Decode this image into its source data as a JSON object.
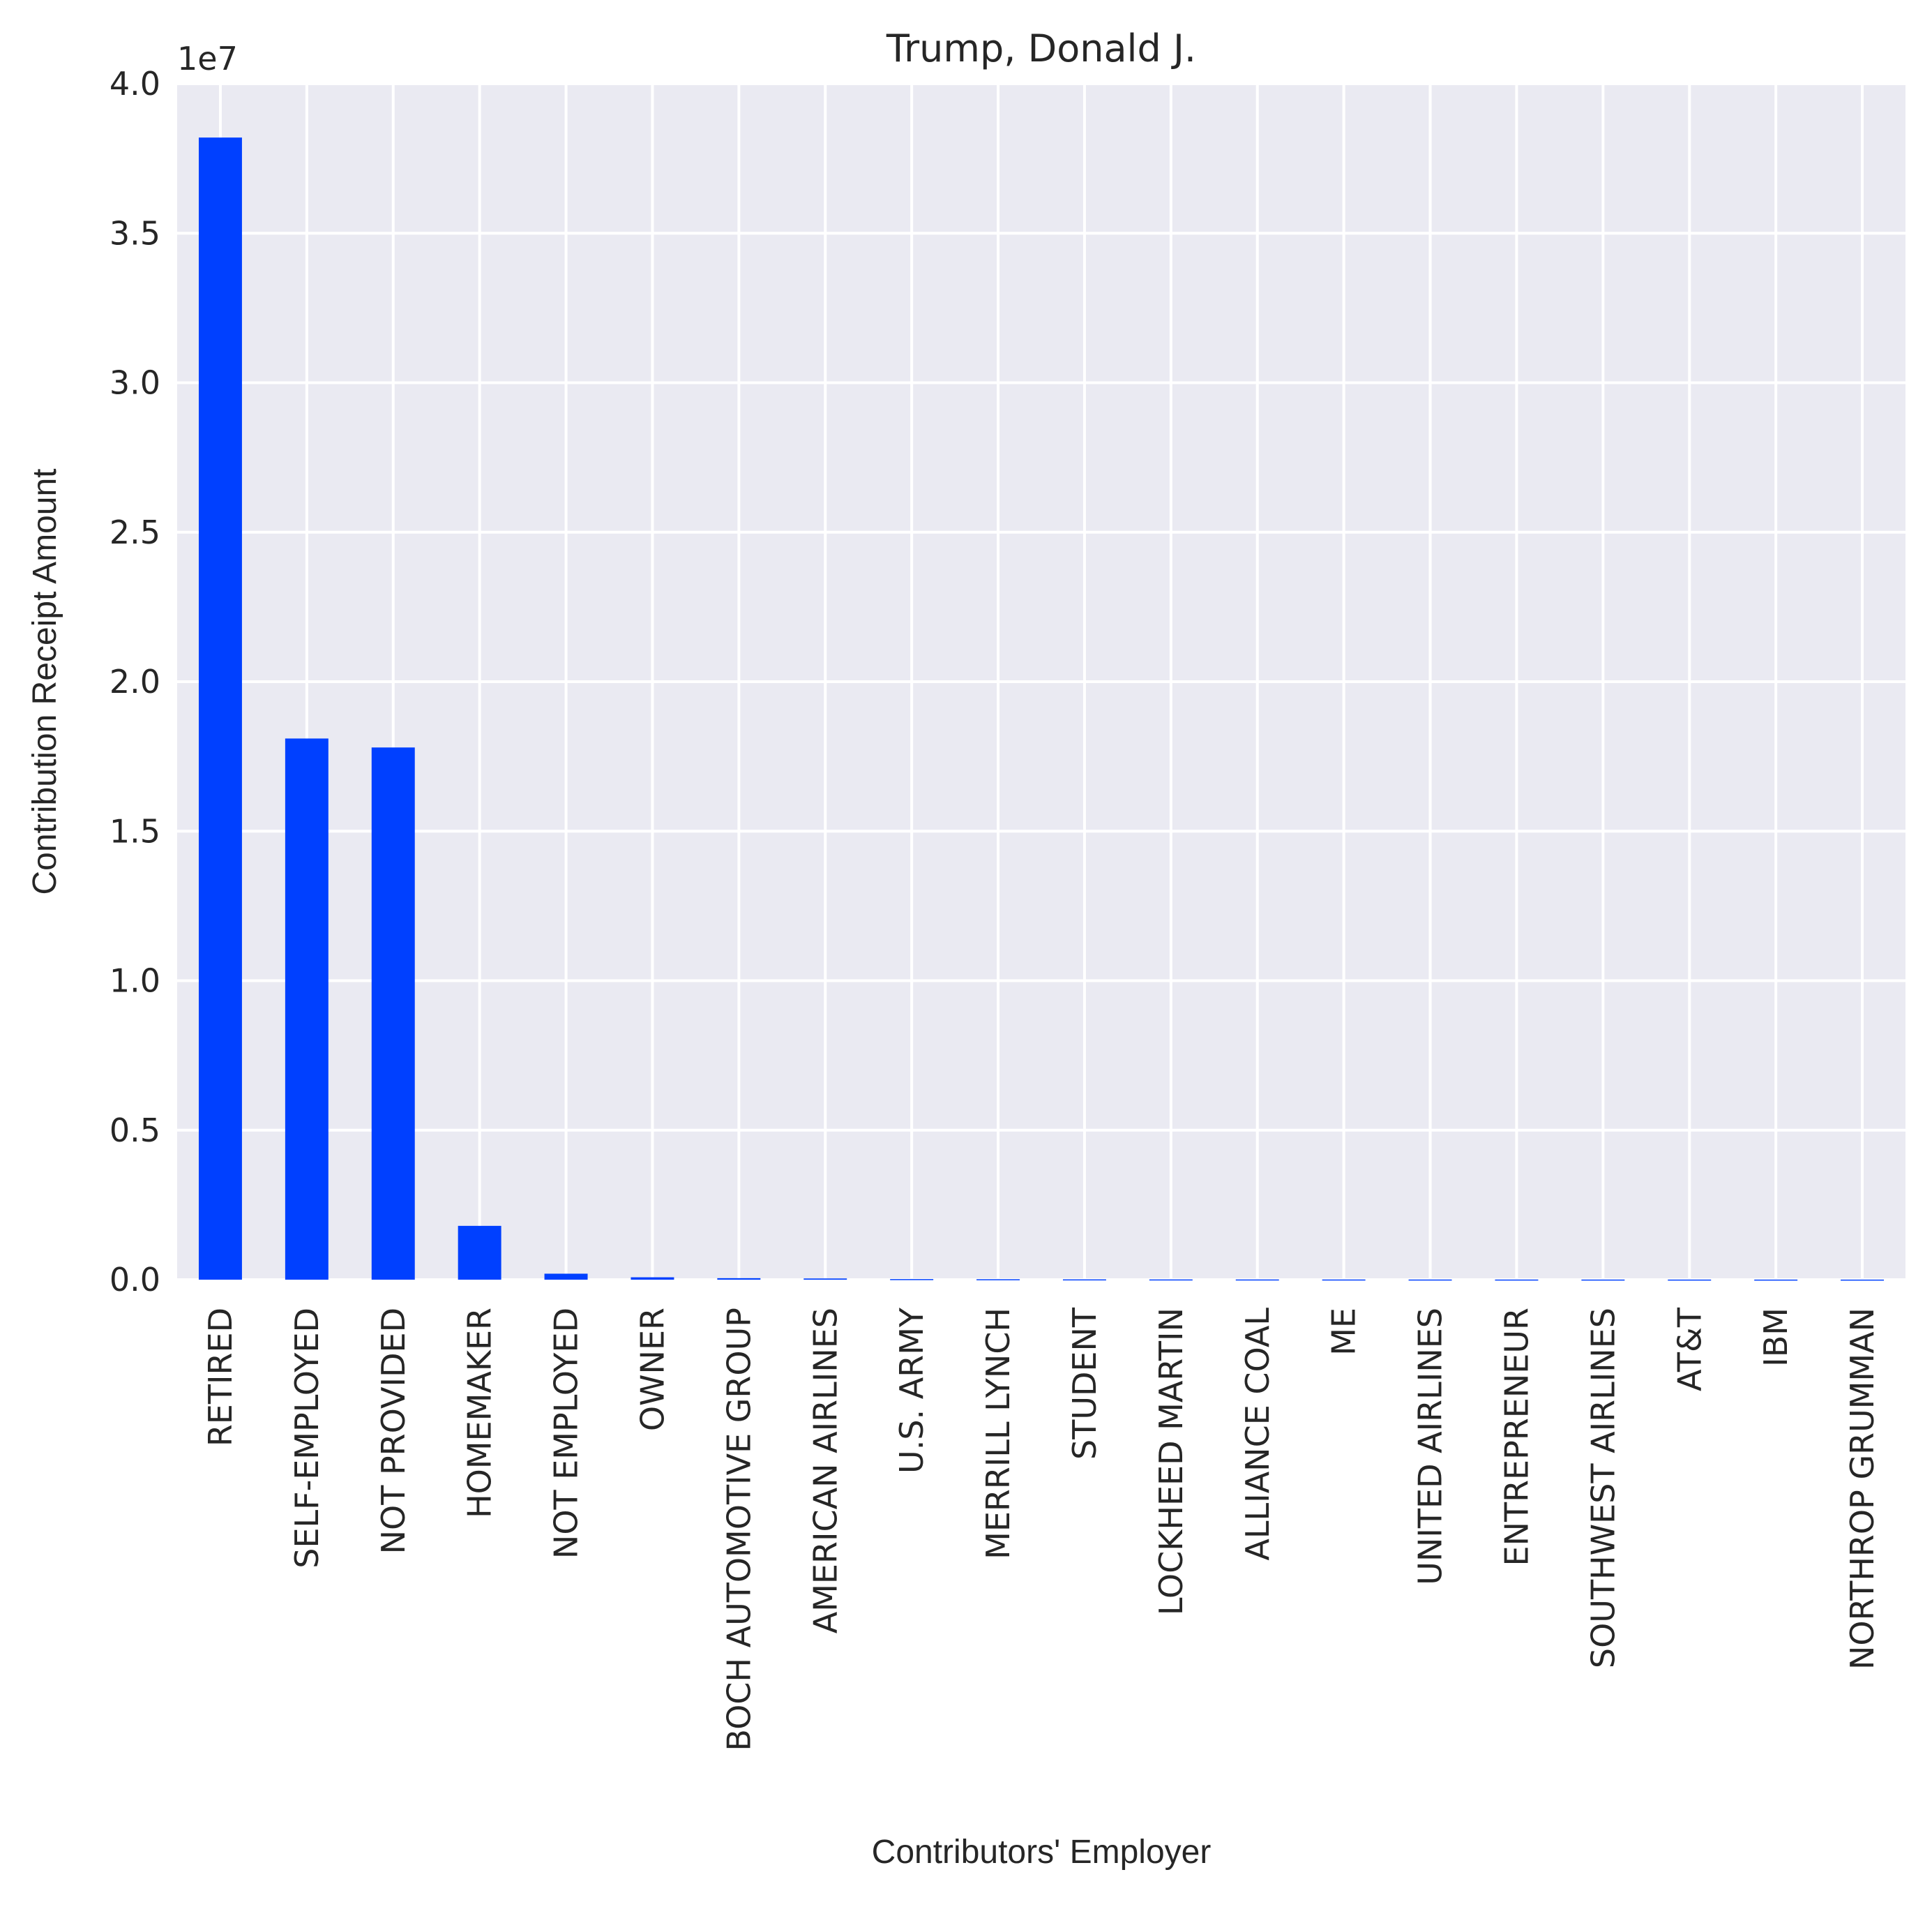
{
  "chart_data": {
    "type": "bar",
    "title": "Trump, Donald J.",
    "xlabel": "Contributors' Employer",
    "ylabel": "Contribution Receipt Amount",
    "offset_text": "1e7",
    "ylim": [
      0,
      4.0
    ],
    "y_multiplier": 10000000,
    "yticks": [
      "0.0",
      "0.5",
      "1.0",
      "1.5",
      "2.0",
      "2.5",
      "3.0",
      "3.5",
      "4.0"
    ],
    "categories": [
      "RETIRED",
      "SELF-EMPLOYED",
      "NOT PROVIDED",
      "HOMEMAKER",
      "NOT EMPLOYED",
      "OWNER",
      "BOCH AUTOMOTIVE GROUP",
      "AMERICAN AIRLINES",
      "U.S. ARMY",
      "MERRILL LYNCH",
      "STUDENT",
      "LOCKHEED MARTIN",
      "ALLIANCE COAL",
      "ME",
      "UNITED AIRLINES",
      "ENTREPRENEUR",
      "SOUTHWEST AIRLINES",
      "AT&T",
      "IBM",
      "NORTHROP GRUMMAN"
    ],
    "values": [
      38200000,
      18100000,
      17800000,
      1800000,
      200000,
      80000,
      50000,
      40000,
      20000,
      15000,
      10000,
      8000,
      7000,
      6000,
      5000,
      4500,
      4000,
      3500,
      3000,
      2500
    ],
    "bar_color": "#0040ff",
    "background_color": "#eaeaf2",
    "grid": true
  }
}
